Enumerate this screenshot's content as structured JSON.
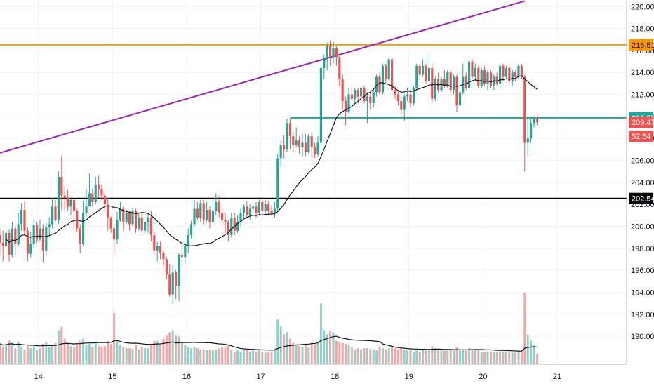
{
  "chart_data": {
    "type": "candlestick",
    "y_axis": {
      "range": [
        188.6,
        220.4
      ],
      "ticks": [
        "190.00",
        "192.00",
        "194.00",
        "196.00",
        "198.00",
        "200.00",
        "202.00",
        "204.00",
        "206.00",
        "208.00",
        "210.00",
        "212.00",
        "214.00",
        "216.00",
        "218.00",
        "220.00"
      ]
    },
    "x_axis": {
      "ticks": [
        {
          "label": "14",
          "bar": 13.5
        },
        {
          "label": "15",
          "bar": 37.5
        },
        {
          "label": "16",
          "bar": 61.5
        },
        {
          "label": "17",
          "bar": 85.5
        },
        {
          "label": "18",
          "bar": 109.5
        },
        {
          "label": "19",
          "bar": 133.5
        },
        {
          "label": "20",
          "bar": 157.5
        },
        {
          "label": "21",
          "bar": 181.5
        }
      ],
      "bar_count": 181
    },
    "horizontal_lines": [
      {
        "value": 216.51,
        "color": "#ff9800",
        "label": "216.51",
        "label_bg": "#ff9800",
        "label_fg": "#131722",
        "x_start_bar": 0
      },
      {
        "value": 209.87,
        "color": "#22a69a",
        "label": "209.87",
        "label_bg": "#22a69a",
        "label_fg": "#ffffff",
        "x_start_bar": 95
      },
      {
        "value": 202.54,
        "color": "#000000",
        "label": "202.54",
        "label_bg": "#000000",
        "label_fg": "#ffffff",
        "x_start_bar": 0
      }
    ],
    "trendline": {
      "color": "#9c27b0",
      "from": {
        "bar": 0,
        "value": 206.6
      },
      "to": {
        "bar": 171,
        "value": 220.5
      }
    },
    "price_tags": [
      {
        "value": 209.47,
        "label": "209.47",
        "bg": "#ef5350",
        "fg": "#ffffff"
      },
      {
        "value": 208.2,
        "label": "52:54",
        "bg": "#ef5350",
        "fg": "#ffffff"
      }
    ],
    "ma_line_color": "#131722",
    "volume_ma_color": "#131722",
    "colors": {
      "up": "#22a69a",
      "down": "#ef5350",
      "up_volume": "#8fd1c9",
      "down_volume": "#f2a6a5",
      "grid": "#f0f3fa",
      "axis_border": "#b2b5be"
    },
    "candles": [
      [
        199.5,
        199.2,
        200.2,
        197.8,
        2.0
      ],
      [
        199.2,
        198.5,
        199.8,
        197.4,
        1.8
      ],
      [
        198.5,
        198.2,
        199.6,
        196.8,
        1.6
      ],
      [
        198.2,
        199.4,
        199.8,
        197.6,
        1.9
      ],
      [
        199.4,
        197.4,
        199.7,
        196.8,
        2.2
      ],
      [
        197.4,
        199.8,
        200.4,
        197.2,
        2.0
      ],
      [
        199.8,
        198.4,
        200.1,
        197.4,
        1.5
      ],
      [
        198.4,
        200.2,
        201.2,
        198.2,
        2.1
      ],
      [
        200.2,
        201.5,
        202.1,
        199.6,
        1.6
      ],
      [
        201.5,
        199.6,
        202.3,
        199.2,
        1.4
      ],
      [
        199.6,
        197.5,
        199.9,
        196.8,
        1.8
      ],
      [
        197.5,
        198.4,
        199.5,
        197.2,
        1.5
      ],
      [
        198.4,
        200.1,
        200.6,
        198.0,
        1.7
      ],
      [
        200.1,
        198.8,
        200.4,
        198.5,
        1.3
      ],
      [
        198.8,
        199.8,
        200.6,
        198.6,
        1.5
      ],
      [
        199.8,
        197.8,
        200.2,
        196.7,
        1.9
      ],
      [
        197.8,
        199.9,
        200.3,
        197.4,
        2.1
      ],
      [
        199.9,
        200.2,
        200.8,
        199.1,
        1.6
      ],
      [
        200.2,
        201.8,
        202.6,
        199.8,
        1.7
      ],
      [
        201.8,
        200.6,
        202.4,
        200.4,
        2.0
      ],
      [
        200.6,
        204.5,
        205.0,
        200.2,
        3.2
      ],
      [
        204.5,
        202.8,
        206.4,
        201.5,
        3.5
      ],
      [
        202.8,
        202.6,
        203.7,
        201.3,
        2.4
      ],
      [
        202.6,
        201.8,
        203.3,
        201.4,
        2.0
      ],
      [
        201.8,
        202.4,
        202.5,
        201.0,
        1.7
      ],
      [
        202.4,
        201.4,
        202.8,
        199.4,
        1.6
      ],
      [
        201.4,
        199.8,
        201.6,
        199.5,
        1.9
      ],
      [
        199.8,
        198.4,
        200.2,
        197.6,
        2.2
      ],
      [
        198.4,
        201.2,
        202.3,
        198.2,
        2.4
      ],
      [
        201.2,
        201.8,
        203.4,
        200.9,
        1.8
      ],
      [
        201.8,
        203.0,
        204.8,
        202.0,
        1.9
      ],
      [
        203.0,
        202.2,
        203.4,
        201.8,
        1.6
      ],
      [
        202.2,
        203.8,
        204.5,
        202.0,
        2.0
      ],
      [
        203.8,
        203.4,
        204.6,
        202.6,
        1.7
      ],
      [
        203.4,
        202.8,
        203.8,
        202.4,
        1.6
      ],
      [
        202.8,
        202.0,
        203.1,
        201.4,
        1.7
      ],
      [
        202.0,
        200.8,
        202.6,
        199.6,
        2.2
      ],
      [
        200.8,
        199.8,
        200.9,
        199.4,
        1.9
      ],
      [
        199.8,
        198.8,
        200.2,
        197.4,
        4.8
      ],
      [
        198.8,
        200.6,
        201.3,
        198.4,
        2.2
      ],
      [
        200.6,
        201.6,
        202.2,
        200.4,
        1.8
      ],
      [
        201.6,
        200.4,
        201.8,
        199.6,
        1.6
      ],
      [
        200.4,
        201.2,
        201.5,
        200.2,
        1.5
      ],
      [
        201.2,
        200.2,
        201.4,
        199.6,
        1.5
      ],
      [
        200.2,
        201.4,
        201.6,
        200.0,
        1.4
      ],
      [
        201.4,
        199.8,
        201.6,
        199.4,
        1.8
      ],
      [
        199.8,
        200.8,
        201.2,
        199.6,
        1.4
      ],
      [
        200.8,
        199.6,
        201.2,
        199.4,
        1.6
      ],
      [
        199.6,
        200.4,
        200.6,
        199.2,
        1.5
      ],
      [
        200.4,
        200.8,
        201.2,
        199.4,
        1.5
      ],
      [
        200.8,
        199.2,
        201.4,
        198.6,
        1.9
      ],
      [
        199.2,
        197.8,
        199.6,
        197.4,
        2.2
      ],
      [
        197.8,
        198.2,
        198.6,
        196.8,
        2.2
      ],
      [
        198.2,
        197.6,
        198.6,
        197.0,
        1.8
      ],
      [
        197.6,
        197.0,
        197.8,
        196.4,
        2.4
      ],
      [
        197.0,
        195.6,
        197.2,
        195.2,
        2.7
      ],
      [
        195.6,
        193.8,
        196.6,
        193.6,
        3.0
      ],
      [
        193.8,
        195.8,
        196.5,
        192.9,
        3.2
      ],
      [
        195.8,
        194.6,
        196.0,
        193.4,
        2.7
      ],
      [
        194.6,
        197.4,
        197.6,
        193.2,
        2.6
      ],
      [
        197.4,
        197.2,
        198.4,
        196.4,
        2.0
      ],
      [
        197.2,
        198.2,
        198.6,
        196.6,
        1.8
      ],
      [
        198.2,
        199.2,
        199.8,
        197.6,
        1.6
      ],
      [
        199.2,
        200.2,
        200.5,
        198.9,
        1.5
      ],
      [
        200.2,
        201.6,
        202.4,
        200.0,
        1.6
      ],
      [
        201.6,
        200.8,
        202.2,
        200.6,
        1.5
      ],
      [
        200.8,
        202.1,
        202.4,
        200.4,
        1.4
      ],
      [
        202.1,
        200.6,
        202.4,
        200.2,
        1.4
      ],
      [
        200.6,
        201.5,
        202.2,
        200.4,
        1.3
      ],
      [
        201.5,
        200.4,
        201.8,
        199.8,
        1.4
      ],
      [
        200.4,
        201.4,
        202.4,
        200.2,
        1.3
      ],
      [
        201.4,
        202.2,
        203.0,
        201.0,
        1.4
      ],
      [
        202.2,
        201.2,
        202.8,
        200.8,
        1.5
      ],
      [
        201.2,
        200.6,
        201.6,
        200.0,
        1.6
      ],
      [
        200.6,
        200.4,
        201.2,
        199.4,
        1.6
      ],
      [
        200.4,
        199.2,
        200.6,
        198.6,
        1.8
      ],
      [
        199.2,
        200.8,
        201.2,
        199.0,
        1.3
      ],
      [
        200.8,
        199.6,
        201.2,
        199.2,
        1.2
      ],
      [
        199.6,
        200.4,
        201.0,
        199.4,
        1.3
      ],
      [
        200.4,
        201.2,
        201.6,
        200.0,
        1.2
      ],
      [
        201.2,
        201.8,
        202.0,
        200.8,
        1.3
      ],
      [
        201.8,
        201.0,
        202.3,
        200.8,
        1.4
      ],
      [
        201.0,
        201.6,
        202.0,
        200.6,
        1.2
      ],
      [
        201.6,
        201.8,
        202.3,
        201.2,
        1.3
      ],
      [
        201.8,
        201.2,
        202.2,
        200.8,
        1.2
      ],
      [
        201.2,
        202.2,
        202.4,
        201.0,
        1.3
      ],
      [
        202.2,
        201.4,
        202.6,
        201.2,
        1.2
      ],
      [
        201.4,
        202.0,
        202.4,
        201.2,
        1.1
      ],
      [
        202.0,
        201.4,
        202.3,
        201.0,
        1.2
      ],
      [
        201.4,
        201.2,
        201.8,
        201.0,
        1.2
      ],
      [
        201.2,
        201.6,
        202.2,
        200.8,
        1.5
      ],
      [
        201.6,
        206.2,
        206.6,
        201.4,
        4.2
      ],
      [
        206.2,
        207.4,
        207.8,
        205.4,
        3.6
      ],
      [
        207.4,
        207.0,
        208.3,
        206.2,
        2.8
      ],
      [
        207.0,
        209.4,
        209.8,
        206.8,
        3.0
      ],
      [
        209.4,
        208.2,
        209.8,
        207.0,
        2.4
      ],
      [
        208.2,
        207.4,
        208.6,
        206.8,
        2.0
      ],
      [
        207.4,
        207.8,
        209.0,
        207.2,
        1.8
      ],
      [
        207.8,
        207.2,
        208.2,
        206.6,
        1.7
      ],
      [
        207.2,
        207.6,
        208.4,
        206.4,
        1.6
      ],
      [
        207.6,
        206.8,
        208.4,
        206.4,
        1.8
      ],
      [
        206.8,
        208.2,
        208.4,
        206.6,
        1.6
      ],
      [
        208.2,
        207.2,
        208.6,
        206.2,
        2.0
      ],
      [
        207.2,
        206.6,
        207.6,
        206.2,
        1.9
      ],
      [
        206.6,
        207.6,
        208.2,
        206.4,
        2.1
      ],
      [
        207.6,
        214.4,
        214.6,
        207.2,
        5.7
      ],
      [
        214.4,
        215.2,
        215.6,
        213.4,
        3.2
      ],
      [
        215.2,
        216.4,
        216.7,
        214.2,
        2.8
      ],
      [
        216.4,
        215.4,
        216.9,
        214.6,
        3.1
      ],
      [
        215.4,
        216.2,
        216.8,
        214.8,
        3.0
      ],
      [
        216.2,
        215.4,
        216.4,
        214.6,
        2.2
      ],
      [
        215.4,
        213.4,
        215.6,
        212.8,
        2.1
      ],
      [
        213.4,
        211.4,
        213.8,
        210.6,
        2.0
      ],
      [
        211.4,
        210.4,
        211.8,
        209.2,
        1.9
      ],
      [
        210.4,
        212.0,
        212.6,
        210.2,
        1.8
      ],
      [
        212.0,
        211.6,
        212.8,
        211.2,
        1.6
      ],
      [
        211.6,
        212.4,
        212.6,
        211.2,
        1.4
      ],
      [
        212.4,
        211.8,
        212.6,
        211.2,
        1.5
      ],
      [
        211.8,
        212.6,
        212.8,
        211.4,
        1.4
      ],
      [
        212.6,
        211.4,
        212.8,
        211.2,
        1.5
      ],
      [
        211.4,
        211.8,
        212.2,
        209.4,
        1.5
      ],
      [
        211.8,
        211.2,
        212.2,
        210.6,
        1.4
      ],
      [
        211.2,
        212.2,
        212.6,
        210.8,
        1.4
      ],
      [
        212.2,
        213.6,
        213.8,
        211.8,
        1.3
      ],
      [
        213.6,
        212.2,
        214.0,
        212.0,
        1.6
      ],
      [
        212.2,
        214.6,
        214.8,
        212.0,
        1.5
      ],
      [
        214.6,
        213.4,
        214.8,
        213.0,
        1.4
      ],
      [
        213.4,
        215.2,
        215.4,
        213.2,
        1.5
      ],
      [
        215.2,
        212.4,
        215.4,
        212.2,
        1.6
      ],
      [
        212.4,
        212.0,
        212.8,
        211.6,
        1.5
      ],
      [
        212.0,
        211.4,
        212.4,
        211.0,
        1.4
      ],
      [
        211.4,
        210.6,
        211.8,
        210.2,
        1.5
      ],
      [
        210.6,
        211.8,
        212.0,
        209.6,
        1.4
      ],
      [
        211.8,
        212.0,
        212.6,
        211.4,
        1.3
      ],
      [
        212.0,
        211.2,
        212.4,
        210.8,
        1.3
      ],
      [
        211.2,
        212.6,
        212.8,
        211.0,
        1.2
      ],
      [
        212.6,
        214.6,
        214.8,
        212.4,
        1.3
      ],
      [
        214.6,
        213.8,
        214.8,
        213.6,
        1.2
      ],
      [
        213.8,
        214.6,
        215.2,
        213.6,
        1.4
      ],
      [
        214.6,
        213.2,
        214.8,
        213.0,
        1.3
      ],
      [
        213.2,
        214.4,
        215.8,
        213.0,
        1.4
      ],
      [
        214.4,
        211.6,
        214.8,
        211.2,
        1.7
      ],
      [
        211.6,
        213.4,
        213.6,
        211.4,
        1.5
      ],
      [
        213.4,
        212.4,
        214.0,
        212.2,
        1.4
      ],
      [
        212.4,
        213.4,
        213.6,
        212.2,
        1.3
      ],
      [
        213.4,
        212.8,
        214.2,
        212.6,
        1.3
      ],
      [
        212.8,
        214.0,
        214.2,
        212.6,
        1.3
      ],
      [
        214.0,
        212.4,
        214.2,
        212.2,
        1.4
      ],
      [
        212.4,
        213.6,
        213.8,
        212.0,
        1.3
      ],
      [
        213.6,
        211.0,
        213.8,
        210.4,
        1.6
      ],
      [
        211.0,
        212.2,
        212.4,
        210.8,
        1.3
      ],
      [
        212.2,
        213.6,
        214.8,
        212.0,
        1.4
      ],
      [
        213.6,
        212.6,
        214.0,
        212.4,
        1.3
      ],
      [
        212.6,
        215.0,
        215.2,
        212.4,
        1.5
      ],
      [
        215.0,
        213.6,
        215.2,
        213.4,
        1.4
      ],
      [
        213.6,
        214.4,
        214.8,
        213.2,
        1.3
      ],
      [
        214.4,
        212.8,
        214.6,
        212.6,
        1.3
      ],
      [
        212.8,
        214.2,
        214.4,
        212.6,
        1.2
      ],
      [
        214.2,
        213.0,
        214.6,
        212.8,
        1.2
      ],
      [
        213.0,
        214.0,
        214.2,
        212.4,
        1.2
      ],
      [
        214.0,
        212.8,
        214.2,
        212.6,
        1.2
      ],
      [
        212.8,
        213.6,
        213.8,
        212.4,
        1.2
      ],
      [
        213.6,
        213.0,
        214.0,
        212.8,
        1.1
      ],
      [
        213.0,
        214.6,
        214.8,
        212.6,
        1.2
      ],
      [
        214.6,
        213.6,
        214.8,
        213.2,
        1.2
      ],
      [
        213.6,
        214.4,
        214.6,
        213.4,
        1.2
      ],
      [
        214.4,
        213.2,
        214.6,
        213.0,
        1.1
      ],
      [
        213.2,
        214.0,
        214.2,
        212.8,
        1.1
      ],
      [
        214.0,
        213.6,
        214.2,
        213.2,
        1.1
      ],
      [
        213.6,
        214.6,
        214.8,
        213.4,
        1.3
      ],
      [
        214.6,
        213.6,
        214.8,
        213.4,
        1.3
      ],
      [
        213.6,
        207.6,
        213.8,
        205.0,
        6.7
      ],
      [
        207.6,
        208.0,
        209.8,
        206.4,
        2.8
      ],
      [
        208.0,
        209.4,
        209.8,
        207.6,
        2.2
      ],
      [
        209.4,
        209.8,
        210.0,
        209.0,
        1.8
      ],
      [
        209.8,
        209.47,
        210.0,
        209.2,
        1.0
      ]
    ]
  }
}
